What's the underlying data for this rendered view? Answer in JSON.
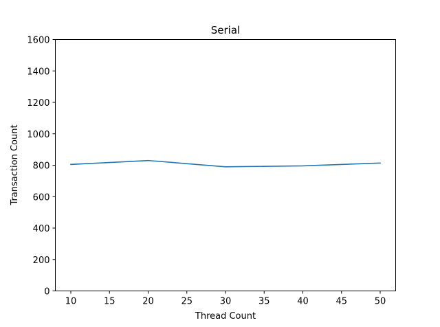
{
  "chart_data": {
    "type": "line",
    "title": "Serial",
    "xlabel": "Thread Count",
    "ylabel": "Transaction Count",
    "x": [
      10,
      20,
      30,
      40,
      50
    ],
    "series": [
      {
        "values": [
          805,
          830,
          790,
          796,
          814
        ],
        "color": "#1f77b4"
      }
    ],
    "xlim": [
      8,
      52
    ],
    "ylim": [
      0,
      1600
    ],
    "xticks": [
      10,
      15,
      20,
      25,
      30,
      35,
      40,
      45,
      50
    ],
    "yticks": [
      0,
      200,
      400,
      600,
      800,
      1000,
      1200,
      1400,
      1600
    ],
    "grid": false,
    "legend": "none"
  }
}
